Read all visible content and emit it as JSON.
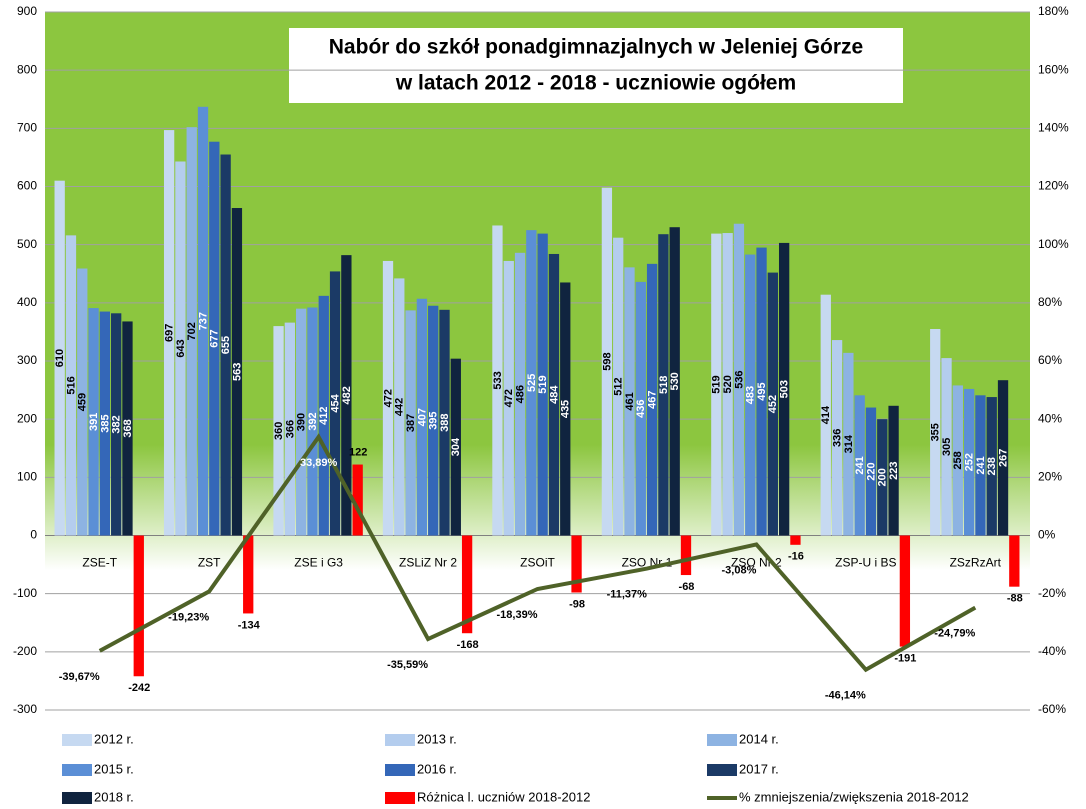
{
  "chart_data": {
    "type": "bar",
    "title": [
      "Nabór do szkół ponadgimnazjalnych w Jeleniej Górze",
      "w latach 2012 - 2018 - uczniowie ogółem"
    ],
    "categories": [
      "ZSE-T",
      "ZST",
      "ZSE i G3",
      "ZSLiZ Nr 2",
      "ZSOiT",
      "ZSO Nr 1",
      "ZSO Nr 2",
      "ZSP-U i BS",
      "ZSzRzArt"
    ],
    "series": [
      {
        "name": "2012 r.",
        "color": "#c6d9f1",
        "values": [
          610,
          697,
          360,
          472,
          533,
          598,
          519,
          414,
          355
        ]
      },
      {
        "name": "2013 r.",
        "color": "#b4cdee",
        "values": [
          516,
          643,
          366,
          442,
          472,
          512,
          520,
          336,
          305
        ]
      },
      {
        "name": "2014 r.",
        "color": "#8db3e2",
        "values": [
          459,
          702,
          390,
          387,
          486,
          461,
          536,
          314,
          258
        ]
      },
      {
        "name": "2015 r.",
        "color": "#5b8fd6",
        "values": [
          391,
          737,
          392,
          407,
          525,
          436,
          483,
          241,
          252
        ]
      },
      {
        "name": "2016 r.",
        "color": "#3467b8",
        "values": [
          385,
          677,
          412,
          395,
          519,
          467,
          495,
          220,
          241
        ]
      },
      {
        "name": "2017 r.",
        "color": "#1b3a66",
        "values": [
          382,
          655,
          454,
          388,
          484,
          518,
          452,
          200,
          238
        ]
      },
      {
        "name": "2018 r.",
        "color": "#10243f",
        "values": [
          368,
          563,
          482,
          304,
          435,
          530,
          503,
          223,
          267
        ]
      },
      {
        "name": "Różnica l. uczniów 2018-2012",
        "color": "#ff0000",
        "values": [
          -242,
          -134,
          122,
          -168,
          -98,
          -68,
          -16,
          -191,
          -88
        ]
      },
      {
        "name": "% zmniejszenia/zwiększenia 2018-2012",
        "color": "#4f6228",
        "axis": "y2",
        "type": "line",
        "values": [
          -39.67,
          -19.23,
          33.89,
          -35.59,
          -18.39,
          -11.37,
          -3.08,
          -46.14,
          -24.79
        ],
        "value_labels": [
          "-39,67%",
          "-19,23%",
          "33,89%",
          "-35,59%",
          "-18,39%",
          "-11,37%",
          "-3,08%",
          "-46,14%",
          "-24,79%"
        ]
      }
    ],
    "ylim": [
      -300,
      900
    ],
    "yticks": [
      -300,
      -200,
      -100,
      0,
      100,
      200,
      300,
      400,
      500,
      600,
      700,
      800,
      900
    ],
    "y2lim": [
      -60,
      180
    ],
    "y2ticks": [
      {
        "value": -60,
        "label": "-60%"
      },
      {
        "value": -40,
        "label": "-40%"
      },
      {
        "value": -20,
        "label": "-20%"
      },
      {
        "value": 0,
        "label": "0%"
      },
      {
        "value": 20,
        "label": "20%"
      },
      {
        "value": 40,
        "label": "40%"
      },
      {
        "value": 60,
        "label": "60%"
      },
      {
        "value": 80,
        "label": "80%"
      },
      {
        "value": 100,
        "label": "100%"
      },
      {
        "value": 120,
        "label": "120%"
      },
      {
        "value": 140,
        "label": "140%"
      },
      {
        "value": 160,
        "label": "160%"
      },
      {
        "value": 180,
        "label": "180%"
      }
    ],
    "grid": true,
    "legend": "bottom"
  }
}
